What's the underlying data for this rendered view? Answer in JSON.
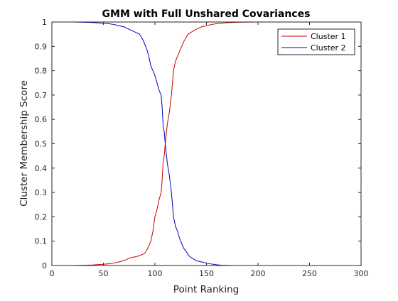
{
  "chart_data": {
    "type": "line",
    "title": "GMM with Full Unshared Covariances",
    "xlabel": "Point Ranking",
    "ylabel": "Cluster Membership Score",
    "xlim": [
      0,
      300
    ],
    "ylim": [
      0,
      1
    ],
    "xticks": [
      "0",
      "50",
      "100",
      "150",
      "200",
      "250",
      "300"
    ],
    "yticks": [
      "0",
      "0.1",
      "0.2",
      "0.3",
      "0.4",
      "0.5",
      "0.6",
      "0.7",
      "0.8",
      "0.9",
      "1"
    ],
    "grid": false,
    "legend_position": "top-right",
    "series": [
      {
        "name": "Cluster 1",
        "color": "#cc0000",
        "x": [
          0,
          20,
          40,
          45,
          50,
          55,
          60,
          65,
          70,
          75,
          80,
          85,
          90,
          93,
          96,
          98,
          100,
          102,
          104,
          106,
          107,
          108,
          109,
          110,
          112,
          114,
          116,
          118,
          120,
          122,
          125,
          128,
          132,
          136,
          140,
          145,
          150,
          155,
          160,
          170,
          180,
          200,
          250,
          288
        ],
        "y": [
          0,
          0,
          0.002,
          0.004,
          0.005,
          0.007,
          0.01,
          0.015,
          0.02,
          0.03,
          0.035,
          0.04,
          0.05,
          0.07,
          0.1,
          0.14,
          0.2,
          0.23,
          0.27,
          0.3,
          0.35,
          0.43,
          0.45,
          0.5,
          0.58,
          0.63,
          0.7,
          0.8,
          0.84,
          0.86,
          0.89,
          0.92,
          0.95,
          0.96,
          0.97,
          0.98,
          0.985,
          0.99,
          0.993,
          0.997,
          0.999,
          1,
          1,
          1
        ]
      },
      {
        "name": "Cluster 2",
        "color": "#0000cc",
        "x": [
          0,
          20,
          40,
          50,
          55,
          60,
          65,
          70,
          75,
          80,
          85,
          88,
          90,
          92,
          94,
          96,
          98,
          100,
          102,
          104,
          105,
          106,
          107,
          108,
          109,
          110,
          112,
          114,
          116,
          118,
          120,
          122,
          124,
          126,
          128,
          130,
          133,
          136,
          140,
          145,
          150,
          155,
          160,
          165,
          175,
          200,
          250,
          288
        ],
        "y": [
          1,
          1,
          0.998,
          0.995,
          0.993,
          0.99,
          0.985,
          0.98,
          0.97,
          0.96,
          0.95,
          0.93,
          0.91,
          0.89,
          0.86,
          0.82,
          0.8,
          0.78,
          0.75,
          0.72,
          0.71,
          0.7,
          0.65,
          0.57,
          0.55,
          0.5,
          0.42,
          0.37,
          0.3,
          0.2,
          0.16,
          0.14,
          0.11,
          0.09,
          0.07,
          0.06,
          0.04,
          0.03,
          0.02,
          0.015,
          0.01,
          0.006,
          0.003,
          0.001,
          0,
          0,
          0,
          0
        ]
      }
    ]
  }
}
